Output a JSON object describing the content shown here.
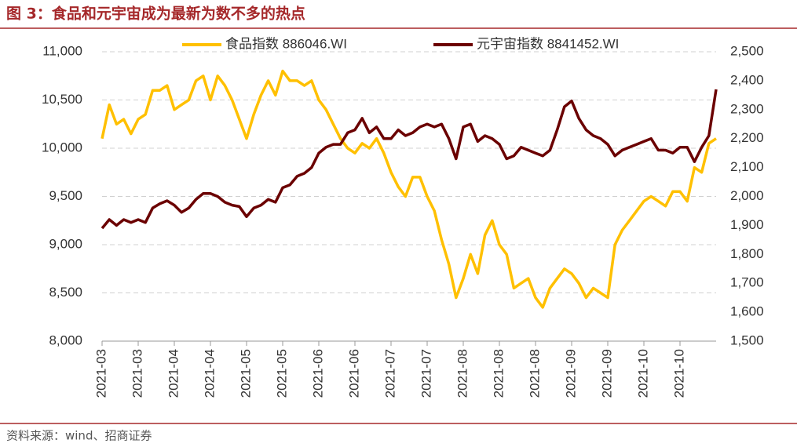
{
  "chart_data": {
    "type": "line",
    "title": "图 3：食品和元宇宙成为最新为数不多的热点",
    "source": "资料来源：wind、招商证券",
    "categories": [
      "2021-03",
      null,
      null,
      null,
      null,
      "2021-03",
      null,
      null,
      null,
      null,
      "2021-04",
      null,
      null,
      null,
      null,
      "2021-04",
      null,
      null,
      null,
      null,
      "2021-05",
      null,
      null,
      null,
      null,
      "2021-05",
      null,
      null,
      null,
      null,
      "2021-06",
      null,
      null,
      null,
      null,
      "2021-06",
      null,
      null,
      null,
      null,
      "2021-07",
      null,
      null,
      null,
      null,
      "2021-07",
      null,
      null,
      null,
      null,
      "2021-08",
      null,
      null,
      null,
      null,
      "2021-08",
      null,
      null,
      null,
      null,
      "2021-08",
      null,
      null,
      null,
      null,
      "2021-09",
      null,
      null,
      null,
      null,
      "2021-09",
      null,
      null,
      null,
      null,
      "2021-10",
      null,
      null,
      null,
      null,
      "2021-10",
      null,
      null,
      null,
      null,
      null
    ],
    "series": [
      {
        "name": "食品指数 886046.WI",
        "color": "#FFC000",
        "axis": "y",
        "values": [
          10100,
          10450,
          10250,
          10300,
          10150,
          10300,
          10350,
          10600,
          10600,
          10650,
          10400,
          10450,
          10500,
          10700,
          10750,
          10500,
          10750,
          10650,
          10500,
          10300,
          10100,
          10350,
          10550,
          10700,
          10550,
          10800,
          10700,
          10700,
          10650,
          10700,
          10500,
          10400,
          10250,
          10100,
          10000,
          9950,
          10050,
          10000,
          10100,
          9950,
          9750,
          9600,
          9500,
          9700,
          9700,
          9500,
          9350,
          9050,
          8800,
          8450,
          8650,
          8900,
          8700,
          9100,
          9250,
          9000,
          8900,
          8550,
          8600,
          8650,
          8450,
          8350,
          8550,
          8650,
          8750,
          8700,
          8600,
          8450,
          8550,
          8500,
          8450,
          9000,
          9150,
          9250,
          9350,
          9450,
          9500,
          9450,
          9400,
          9550,
          9550,
          9450,
          9800,
          9750,
          10050,
          10100
        ]
      },
      {
        "name": "元宇宙指数 8841452.WI",
        "color": "#6B0000",
        "axis": "y2",
        "values": [
          1890,
          1920,
          1900,
          1920,
          1910,
          1920,
          1910,
          1960,
          1975,
          1985,
          1970,
          1945,
          1960,
          1990,
          2010,
          2010,
          2000,
          1980,
          1970,
          1965,
          1930,
          1960,
          1970,
          1990,
          1980,
          2030,
          2040,
          2070,
          2080,
          2100,
          2150,
          2170,
          2180,
          2180,
          2220,
          2230,
          2270,
          2220,
          2240,
          2200,
          2200,
          2230,
          2210,
          2220,
          2240,
          2250,
          2240,
          2250,
          2200,
          2130,
          2240,
          2250,
          2190,
          2210,
          2200,
          2180,
          2130,
          2140,
          2170,
          2160,
          2150,
          2140,
          2160,
          2230,
          2310,
          2330,
          2270,
          2230,
          2210,
          2200,
          2180,
          2140,
          2160,
          2170,
          2180,
          2190,
          2200,
          2160,
          2160,
          2150,
          2170,
          2170,
          2120,
          2170,
          2210,
          2370
        ]
      }
    ],
    "ylim": [
      8000,
      11000
    ],
    "yticks": [
      {
        "value": 8000,
        "label": "8,000"
      },
      {
        "value": 8500,
        "label": "8,500"
      },
      {
        "value": 9000,
        "label": "9,000"
      },
      {
        "value": 9500,
        "label": "9,500"
      },
      {
        "value": 10000,
        "label": "10,000"
      },
      {
        "value": 10500,
        "label": "10,500"
      },
      {
        "value": 11000,
        "label": "11,000"
      }
    ],
    "y2lim": [
      1500,
      2500
    ],
    "y2ticks": [
      {
        "value": 1500,
        "label": "1,500"
      },
      {
        "value": 1600,
        "label": "1,600"
      },
      {
        "value": 1700,
        "label": "1,700"
      },
      {
        "value": 1800,
        "label": "1,800"
      },
      {
        "value": 1900,
        "label": "1,900"
      },
      {
        "value": 2000,
        "label": "2,000"
      },
      {
        "value": 2100,
        "label": "2,100"
      },
      {
        "value": 2200,
        "label": "2,200"
      },
      {
        "value": 2300,
        "label": "2,300"
      },
      {
        "value": 2400,
        "label": "2,400"
      },
      {
        "value": 2500,
        "label": "2,500"
      }
    ],
    "grid": true,
    "legend": "top"
  }
}
